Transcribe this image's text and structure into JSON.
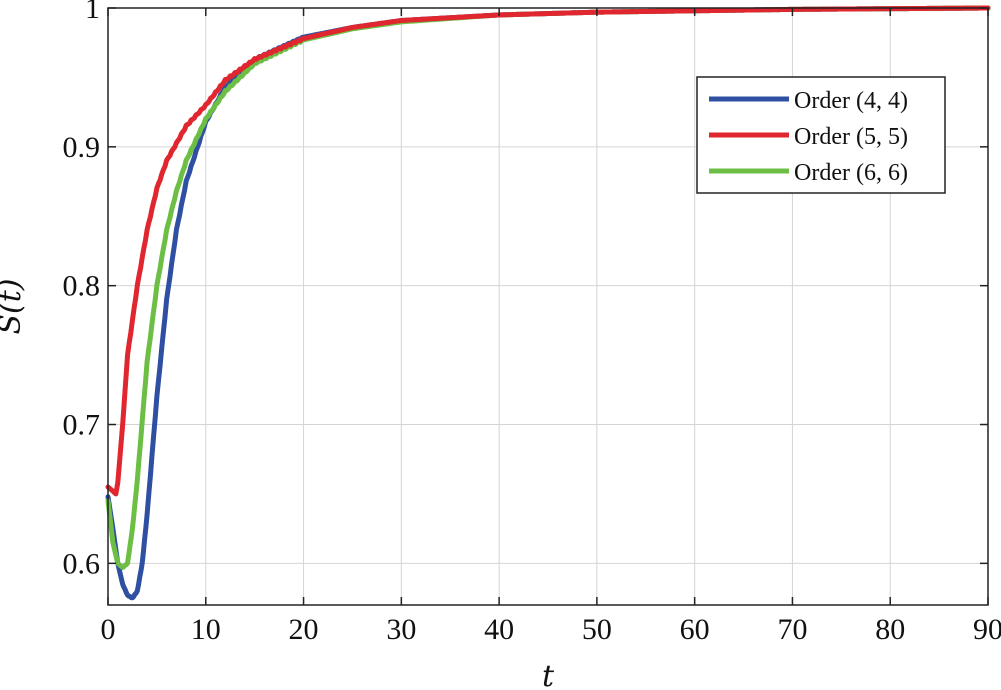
{
  "chart_data": {
    "type": "line",
    "title": "",
    "xlabel": "t",
    "ylabel": "S(t)",
    "xlim": [
      0,
      90
    ],
    "ylim": [
      0.57,
      1.0
    ],
    "grid": true,
    "legend_position": "top-right",
    "x_ticks": [
      0,
      10,
      20,
      30,
      40,
      50,
      60,
      70,
      80,
      90
    ],
    "x_tick_labels": [
      "0",
      "10",
      "20",
      "30",
      "40",
      "50",
      "60",
      "70",
      "80",
      "90"
    ],
    "y_ticks": [
      0.6,
      0.7,
      0.8,
      0.9,
      1.0
    ],
    "y_tick_labels": [
      "0.6",
      "0.7",
      "0.8",
      "0.9",
      "1"
    ],
    "series": [
      {
        "name": "Order (4, 4)",
        "color": "#2f4fa3",
        "x": [
          0,
          0.5,
          1,
          1.5,
          2,
          2.5,
          3,
          3.5,
          4,
          5,
          6,
          7,
          8,
          10,
          12,
          15,
          20,
          25,
          30,
          40,
          50,
          60,
          70,
          80,
          90
        ],
        "y": [
          0.648,
          0.625,
          0.6,
          0.585,
          0.577,
          0.575,
          0.58,
          0.6,
          0.635,
          0.72,
          0.79,
          0.84,
          0.875,
          0.918,
          0.943,
          0.963,
          0.979,
          0.986,
          0.991,
          0.995,
          0.997,
          0.998,
          0.999,
          0.9995,
          1.0
        ]
      },
      {
        "name": "Order (5, 5)",
        "color": "#e0262e",
        "x": [
          0,
          0.5,
          0.8,
          1,
          1.5,
          2,
          3,
          4,
          5,
          6,
          8,
          10,
          12,
          15,
          20,
          25,
          30,
          40,
          50,
          60,
          70,
          80,
          90
        ],
        "y": [
          0.655,
          0.652,
          0.65,
          0.658,
          0.7,
          0.75,
          0.8,
          0.84,
          0.87,
          0.89,
          0.915,
          0.93,
          0.948,
          0.963,
          0.978,
          0.986,
          0.991,
          0.995,
          0.997,
          0.998,
          0.999,
          0.9995,
          1.0
        ]
      },
      {
        "name": "Order (6, 6)",
        "color": "#6cbf44",
        "x": [
          0,
          0.5,
          1,
          1.5,
          2,
          2.5,
          3,
          4,
          5,
          6,
          7,
          8,
          10,
          12,
          15,
          20,
          25,
          30,
          40,
          50,
          60,
          70,
          80,
          90
        ],
        "y": [
          0.645,
          0.615,
          0.6,
          0.597,
          0.6,
          0.625,
          0.66,
          0.745,
          0.8,
          0.84,
          0.868,
          0.89,
          0.92,
          0.94,
          0.96,
          0.977,
          0.985,
          0.99,
          0.995,
          0.997,
          0.998,
          0.999,
          0.9995,
          1.0
        ]
      }
    ]
  }
}
